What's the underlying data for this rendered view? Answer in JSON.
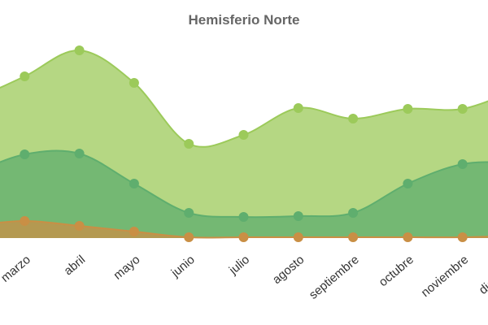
{
  "chart_data": {
    "type": "area",
    "title": "Hemisferio Norte",
    "categories": [
      null,
      "marzo",
      "abril",
      "mayo",
      "junio",
      "julio",
      "agosto",
      "septiembre",
      "octubre",
      "noviembre",
      "diciembre"
    ],
    "ylim": [
      0,
      250
    ],
    "series": [
      {
        "color": "#9cca5a",
        "values": [
          168,
          199,
          231,
          191,
          116,
          127,
          160,
          147,
          159,
          159,
          183
        ]
      },
      {
        "color": "#5fae6e",
        "values": [
          78,
          103,
          104,
          67,
          31,
          26,
          27,
          31,
          67,
          91,
          93
        ]
      },
      {
        "color": "#c98f45",
        "values": [
          15,
          21,
          15,
          8,
          1,
          1,
          1,
          1,
          1,
          1,
          3
        ]
      }
    ]
  }
}
